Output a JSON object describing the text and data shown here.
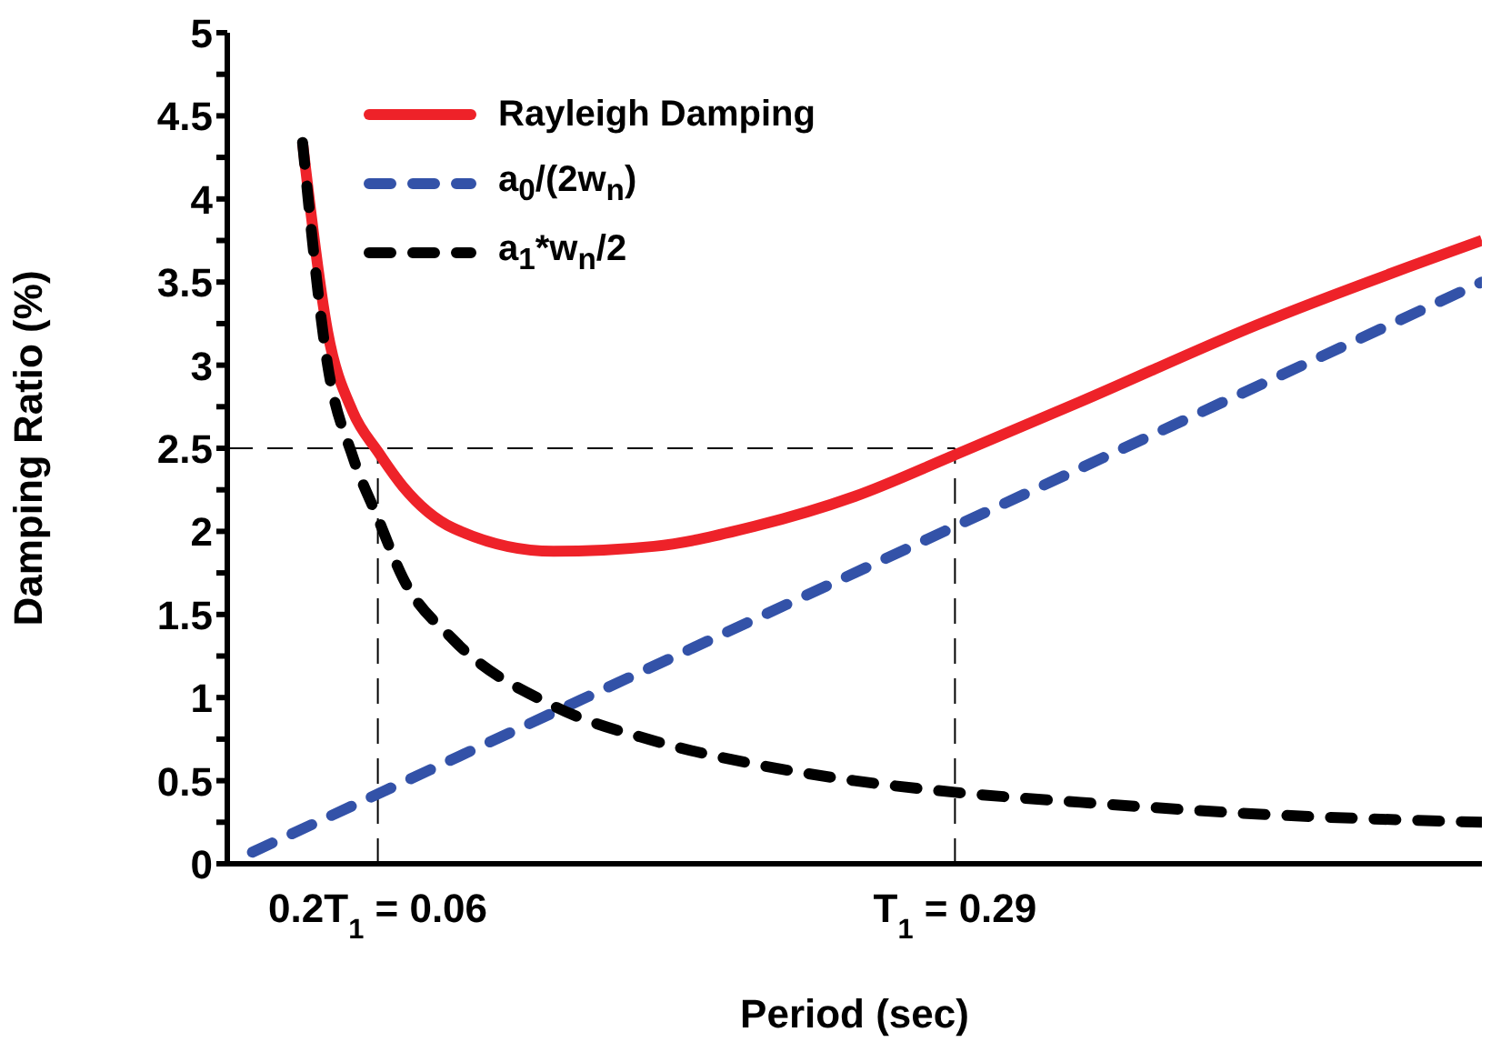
{
  "chart_data": {
    "type": "line",
    "xlabel": "Period (sec)",
    "ylabel": "Damping Ratio (%)",
    "categories": [
      null,
      null,
      null,
      null,
      null,
      null,
      "0.2T$_{1}$ = 0.06",
      null,
      null,
      null,
      null,
      null,
      null,
      null,
      null,
      null,
      null,
      null,
      null,
      null,
      null,
      null,
      null,
      null,
      null,
      null,
      null,
      null,
      null,
      "T$_{1}$ = 0.29",
      null,
      null,
      null,
      null,
      null,
      null,
      null,
      null,
      null,
      null,
      null,
      null,
      null,
      null,
      null,
      null,
      null,
      null,
      null,
      null,
      null
    ],
    "ylim": [
      0,
      5
    ],
    "yticks": [
      0,
      {
        "value": 0.25,
        "label": null
      },
      0.5,
      {
        "value": 0.75,
        "label": null
      },
      1,
      {
        "value": 1.25,
        "label": null
      },
      1.5,
      {
        "value": 1.75,
        "label": null
      },
      2,
      {
        "value": 2.25,
        "label": null
      },
      2.5,
      {
        "value": 2.75,
        "label": null
      },
      3,
      {
        "value": 3.25,
        "label": null
      },
      3.5,
      {
        "value": 3.75,
        "label": null
      },
      4,
      {
        "value": 4.25,
        "label": null
      },
      4.5,
      {
        "value": 4.75,
        "label": null
      },
      5
    ],
    "grid": false,
    "legend": "top left",
    "marker": "none",
    "ref_lines": [
      {
        "axis": "y",
        "value": 2.5,
        "line_style": "dashed",
        "color": "#000000"
      },
      {
        "axis": "x",
        "value": "0.2T$_{1}$ = 0.06",
        "line_style": "dashed",
        "color": "#000000"
      },
      {
        "axis": "x",
        "value": "T$_{1}$ = 0.29",
        "line_style": "dashed",
        "color": "#000000"
      }
    ],
    "series": [
      {
        "name": "Rayleigh Damping",
        "color": "#ee2229",
        "line_style": "solid",
        "values": [
          null,
          null,
          null,
          4.34,
          3.2,
          2.72,
          2.48,
          2.27,
          null,
          2.02,
          null,
          null,
          null,
          1.88,
          null,
          null,
          null,
          1.91,
          null,
          null,
          null,
          2.03,
          null,
          null,
          null,
          2.21,
          null,
          null,
          null,
          2.46,
          null,
          null,
          null,
          null,
          2.78,
          null,
          null,
          null,
          null,
          null,
          null,
          3.24,
          null,
          null,
          null,
          null,
          null,
          null,
          null,
          null,
          3.75
        ]
      },
      {
        "name": "a$_{0}$/(2w$_{n}$)",
        "color": "#3352a8",
        "line_style": "dashed",
        "values": [
          null,
          0.07,
          null,
          null,
          null,
          null,
          null,
          null,
          null,
          null,
          null,
          null,
          null,
          null,
          null,
          null,
          null,
          null,
          null,
          null,
          null,
          null,
          null,
          null,
          null,
          null,
          null,
          null,
          null,
          2.03,
          null,
          null,
          null,
          null,
          null,
          null,
          null,
          null,
          null,
          null,
          null,
          null,
          null,
          null,
          null,
          null,
          null,
          null,
          null,
          null,
          3.5
        ]
      },
      {
        "name": "a$_{1}$*w$_{n}$/2",
        "color": "#000000",
        "line_style": "dashed",
        "values": [
          null,
          null,
          null,
          4.34,
          3.0,
          2.45,
          2.08,
          1.72,
          null,
          1.35,
          null,
          null,
          null,
          0.95,
          null,
          null,
          null,
          0.74,
          null,
          null,
          null,
          0.6,
          null,
          null,
          null,
          0.5,
          null,
          null,
          null,
          0.43,
          null,
          null,
          null,
          null,
          0.37,
          null,
          null,
          null,
          null,
          null,
          null,
          0.3,
          null,
          null,
          null,
          null,
          null,
          null,
          null,
          null,
          0.25
        ]
      }
    ]
  }
}
